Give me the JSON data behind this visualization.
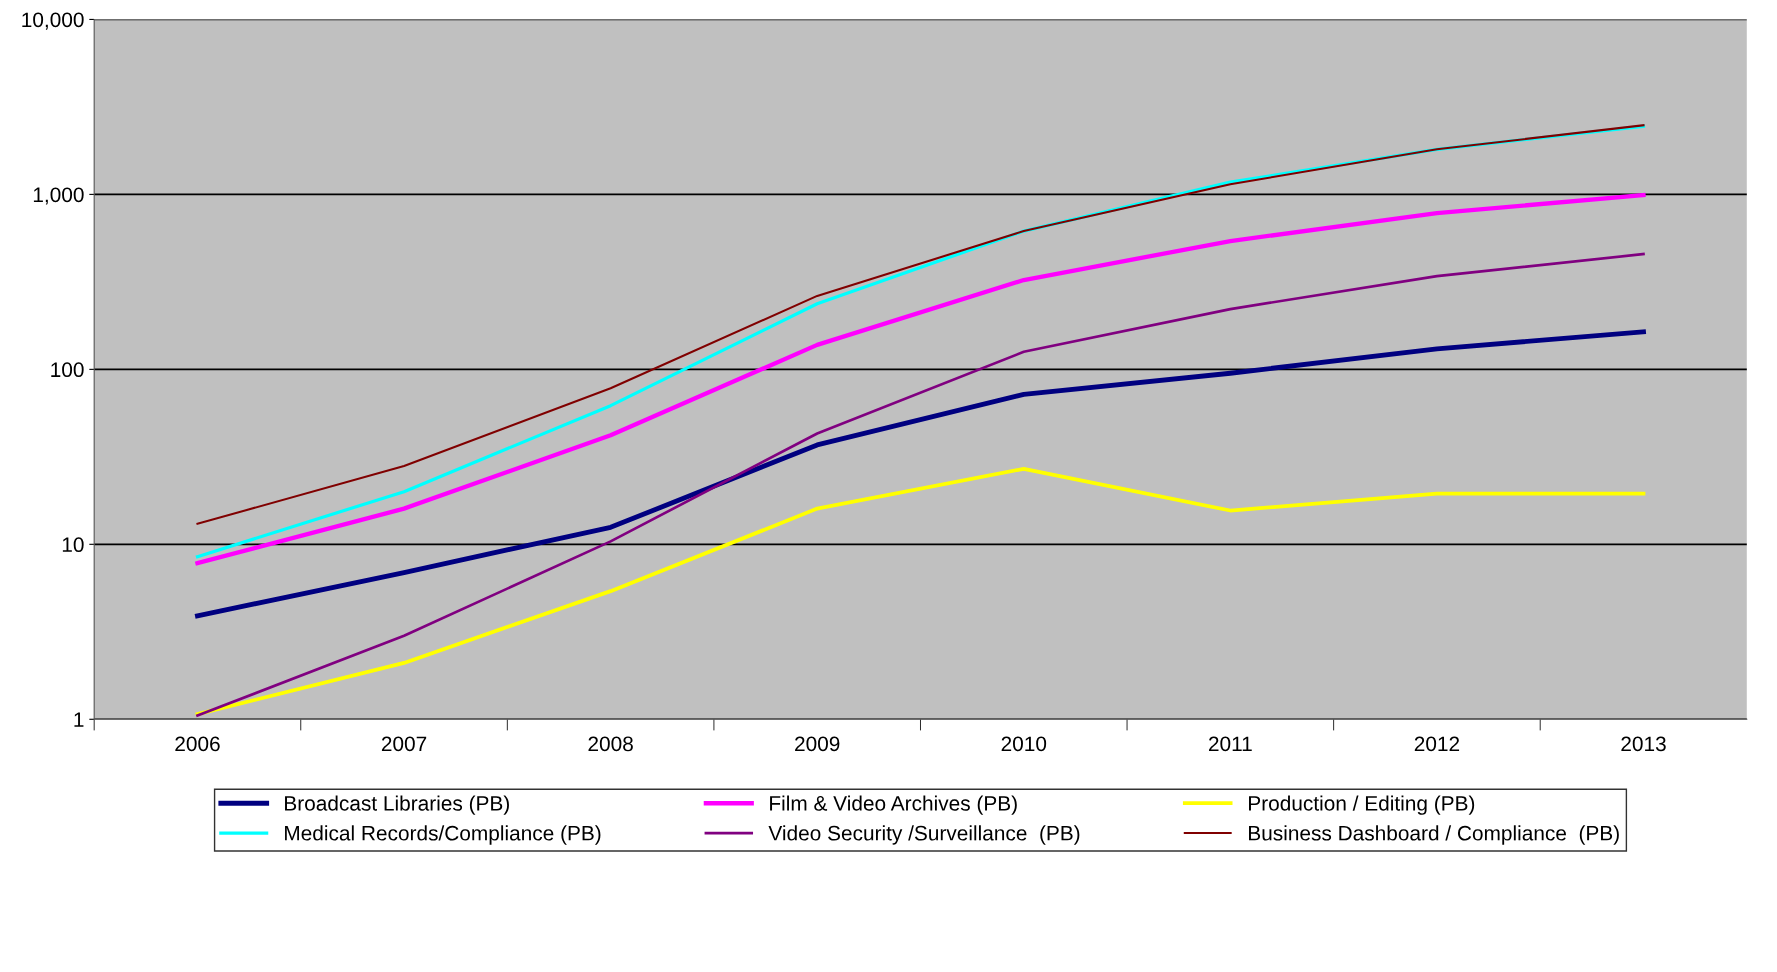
{
  "chart_data": {
    "type": "line",
    "categories": [
      "2006",
      "2007",
      "2008",
      "2009",
      "2010",
      "2011",
      "2012",
      "2013"
    ],
    "series": [
      {
        "name": "Broadcast Libraries (PB)",
        "color": "#000080",
        "values": [
          3.9,
          6.9,
          12.5,
          37,
          72,
          95,
          131,
          164
        ]
      },
      {
        "name": "Film & Video Archives (PB)",
        "color": "#ff00ff",
        "values": [
          7.8,
          16,
          42,
          138,
          324,
          541,
          782,
          990
        ]
      },
      {
        "name": "Production / Editing (PB)",
        "color": "#ffff00",
        "values": [
          1.07,
          2.1,
          5.4,
          16,
          27,
          15.6,
          19.5,
          19.5
        ]
      },
      {
        "name": "Medical Records/Compliance (PB)",
        "color": "#00ffff",
        "values": [
          8.5,
          20,
          62,
          237,
          617,
          1175,
          1810,
          2450
        ]
      },
      {
        "name": "Video Security /Surveillance  (PB)",
        "color": "#800080",
        "values": [
          1.05,
          3.0,
          10.4,
          43,
          126,
          221,
          341,
          456
        ]
      },
      {
        "name": "Business Dashboard / Compliance  (PB)",
        "color": "#800000",
        "values": [
          13.1,
          28,
          78,
          263,
          617,
          1143,
          1810,
          2485
        ]
      }
    ],
    "log": "y",
    "ylim": [
      1,
      10000
    ],
    "yticks": [
      1,
      10,
      100,
      {
        "value": 1000,
        "label": "1,000"
      },
      {
        "value": 10000,
        "label": "10,000"
      }
    ],
    "grid": "y",
    "legend": "bottom",
    "marker": "none",
    "line_style": "solid"
  }
}
